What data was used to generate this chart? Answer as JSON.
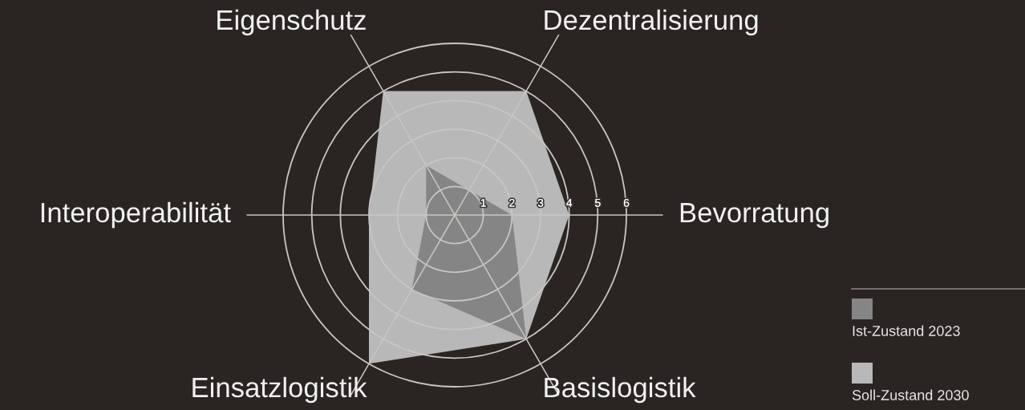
{
  "chart_data": {
    "type": "radar",
    "categories": [
      "Eigenschutz",
      "Dezentralisierung",
      "Bevorratung",
      "Basislogistik",
      "Einsatzlogistik",
      "Interoperabilität"
    ],
    "series": [
      {
        "name": "Ist-Zustand 2023",
        "color": "#858585",
        "values": [
          2,
          1,
          2,
          5,
          3,
          1
        ]
      },
      {
        "name": "Soll-Zustand 2030",
        "color": "#b8b8b8",
        "values": [
          5,
          5,
          4,
          5,
          6,
          3
        ]
      }
    ],
    "ylim": [
      0,
      6
    ],
    "yticks": [
      1,
      2,
      3,
      4,
      5,
      6
    ],
    "grid": true,
    "legend": "bottom right"
  }
}
